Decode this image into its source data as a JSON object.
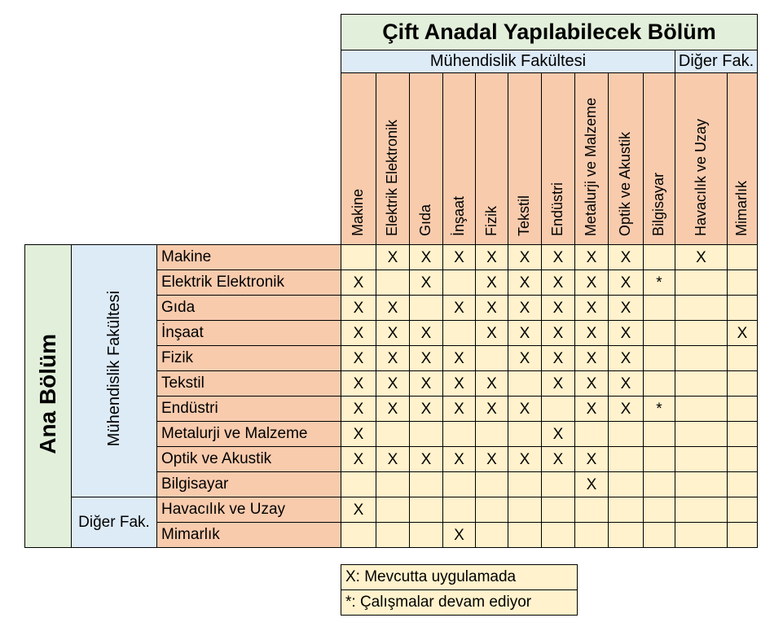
{
  "chart_data": {
    "type": "table",
    "title": "Çift Anadal Yapılabilecek Bölüm",
    "col_groups": {
      "engineering": "Mühendislik Fakültesi",
      "other": "Diğer Fak."
    },
    "row_axis_label": "Ana Bölüm",
    "row_groups": {
      "engineering": "Mühendislik Fakültesi",
      "other": "Diğer Fak."
    },
    "columns": [
      "Makine",
      "Elektrik Elektronik",
      "Gıda",
      "İnşaat",
      "Fizik",
      "Tekstil",
      "Endüstri",
      "Metalurji ve Malzeme",
      "Optik ve Akustik",
      "Bilgisayar",
      "Havacılık ve Uzay",
      "Mimarlık"
    ],
    "rows": [
      "Makine",
      "Elektrik Elektronik",
      "Gıda",
      "İnşaat",
      "Fizik",
      "Tekstil",
      "Endüstri",
      "Metalurji ve Malzeme",
      "Optik ve Akustik",
      "Bilgisayar",
      "Havacılık ve Uzay",
      "Mimarlık"
    ],
    "engineering_col_count": 10,
    "engineering_row_count": 10,
    "matrix": [
      [
        "",
        "X",
        "X",
        "X",
        "X",
        "X",
        "X",
        "X",
        "X",
        "",
        "X",
        ""
      ],
      [
        "X",
        "",
        "X",
        "",
        "X",
        "X",
        "X",
        "X",
        "X",
        "*",
        "",
        ""
      ],
      [
        "X",
        "X",
        "",
        "X",
        "X",
        "X",
        "X",
        "X",
        "X",
        "",
        "",
        ""
      ],
      [
        "X",
        "X",
        "X",
        "",
        "X",
        "X",
        "X",
        "X",
        "X",
        "",
        "",
        "X"
      ],
      [
        "X",
        "X",
        "X",
        "X",
        "",
        "X",
        "X",
        "X",
        "X",
        "",
        "",
        ""
      ],
      [
        "X",
        "X",
        "X",
        "X",
        "X",
        "",
        "X",
        "X",
        "X",
        "",
        "",
        ""
      ],
      [
        "X",
        "X",
        "X",
        "X",
        "X",
        "X",
        "",
        "X",
        "X",
        "*",
        "",
        ""
      ],
      [
        "X",
        "",
        "",
        "",
        "",
        "",
        "X",
        "",
        "",
        "",
        "",
        ""
      ],
      [
        "X",
        "X",
        "X",
        "X",
        "X",
        "X",
        "X",
        "X",
        "",
        "",
        "",
        ""
      ],
      [
        "",
        "",
        "",
        "",
        "",
        "",
        "",
        "X",
        "",
        "",
        "",
        ""
      ],
      [
        "X",
        "",
        "",
        "",
        "",
        "",
        "",
        "",
        "",
        "",
        "",
        ""
      ],
      [
        "",
        "",
        "",
        "X",
        "",
        "",
        "",
        "",
        "",
        "",
        "",
        ""
      ]
    ],
    "legend": [
      "X: Mevcutta uygulamada",
      "*: Çalışmalar devam ediyor"
    ]
  },
  "colors": {
    "header_green": "#E2EFDA",
    "header_blue": "#DDEBF7",
    "header_orange": "#F8CBAD",
    "cell_cream": "#FFF2CC",
    "border": "#000000",
    "text": "#000000"
  }
}
